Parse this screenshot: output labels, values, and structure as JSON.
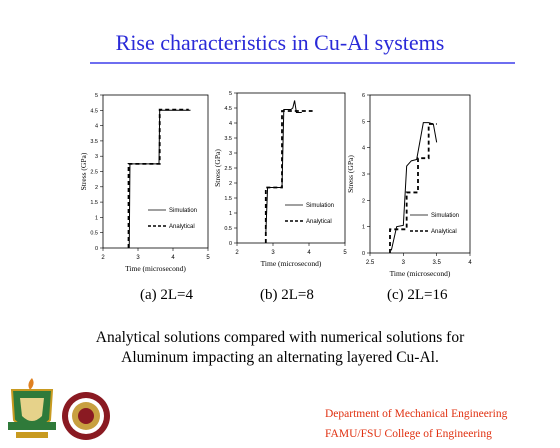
{
  "slide": {
    "title": "Rise characteristics in Cu-Al systems",
    "body_line1": "Analytical solutions compared with numerical solutions for",
    "body_line2": "Aluminum impacting an alternating layered Cu-Al.",
    "footer_line1": "Department of Mechanical Engineering",
    "footer_line2": "FAMU/FSU College of Engineering"
  },
  "captions": [
    "(a) 2L=4",
    "(b) 2L=8",
    "(c) 2L=16"
  ],
  "colors": {
    "title": "#2a2ad8",
    "rule": "#6e6ef0",
    "footer": "#e03010"
  },
  "chart_data": [
    {
      "type": "line",
      "xlabel": "Time (microsecond)",
      "ylabel": "Stress (GPa)",
      "xlim": [
        2,
        5
      ],
      "ylim": [
        0,
        5
      ],
      "x_ticks": [
        "2",
        "3",
        "4",
        "5"
      ],
      "y_ticks": [
        "0",
        "0.5",
        "1",
        "1.5",
        "2",
        "2.5",
        "3",
        "3.5",
        "4",
        "4.5",
        "5"
      ],
      "legend": "right",
      "series": [
        {
          "name": "Simulation",
          "style": "solid",
          "x": [
            2.75,
            2.77,
            2.85,
            3.6,
            3.62,
            3.7,
            4.5
          ],
          "y": [
            0,
            2.75,
            2.75,
            2.75,
            4.5,
            4.5,
            4.5
          ]
        },
        {
          "name": "Analytical",
          "style": "dashed",
          "x": [
            2.73,
            2.73,
            3.62,
            3.62,
            4.45
          ],
          "y": [
            0,
            2.75,
            2.75,
            4.52,
            4.52
          ]
        }
      ]
    },
    {
      "type": "line",
      "xlabel": "Time (microsecond)",
      "ylabel": "Stress (GPa)",
      "xlim": [
        2,
        5
      ],
      "ylim": [
        0,
        5
      ],
      "x_ticks": [
        "2",
        "3",
        "4",
        "5"
      ],
      "y_ticks": [
        "0",
        "0.5",
        "1",
        "1.5",
        "2",
        "2.5",
        "3",
        "3.5",
        "4",
        "4.5",
        "5"
      ],
      "legend": "right",
      "series": [
        {
          "name": "Simulation",
          "style": "solid",
          "x": [
            2.8,
            2.85,
            3.25,
            3.3,
            3.5,
            3.55,
            3.6,
            3.65,
            3.7,
            3.8
          ],
          "y": [
            0.3,
            1.85,
            1.85,
            4.45,
            4.45,
            4.5,
            4.75,
            4.35,
            4.35,
            4.35
          ]
        },
        {
          "name": "Analytical",
          "style": "dashed",
          "x": [
            2.8,
            2.8,
            3.25,
            3.25,
            4.1
          ],
          "y": [
            0,
            1.85,
            1.85,
            4.4,
            4.4
          ]
        }
      ]
    },
    {
      "type": "line",
      "xlabel": "Time (microsecond)",
      "ylabel": "Stress (GPa)",
      "xlim": [
        2.5,
        4
      ],
      "ylim": [
        0,
        6
      ],
      "x_ticks": [
        "2.5",
        "3",
        "3.5",
        "4"
      ],
      "y_ticks": [
        "0",
        "1",
        "2",
        "3",
        "4",
        "5",
        "6"
      ],
      "legend": "right",
      "series": [
        {
          "name": "Simulation",
          "style": "solid",
          "x": [
            2.82,
            2.9,
            3.0,
            3.05,
            3.12,
            3.2,
            3.3,
            3.38,
            3.45,
            3.5
          ],
          "y": [
            0.1,
            1.0,
            1.05,
            3.3,
            3.5,
            3.55,
            4.95,
            4.95,
            4.9,
            4.2
          ]
        },
        {
          "name": "Analytical",
          "style": "dashed",
          "x": [
            2.8,
            2.8,
            3.05,
            3.05,
            3.22,
            3.22,
            3.38,
            3.38,
            3.5
          ],
          "y": [
            0,
            0.9,
            0.9,
            2.3,
            2.3,
            3.6,
            3.6,
            4.9,
            4.9
          ]
        }
      ]
    }
  ]
}
